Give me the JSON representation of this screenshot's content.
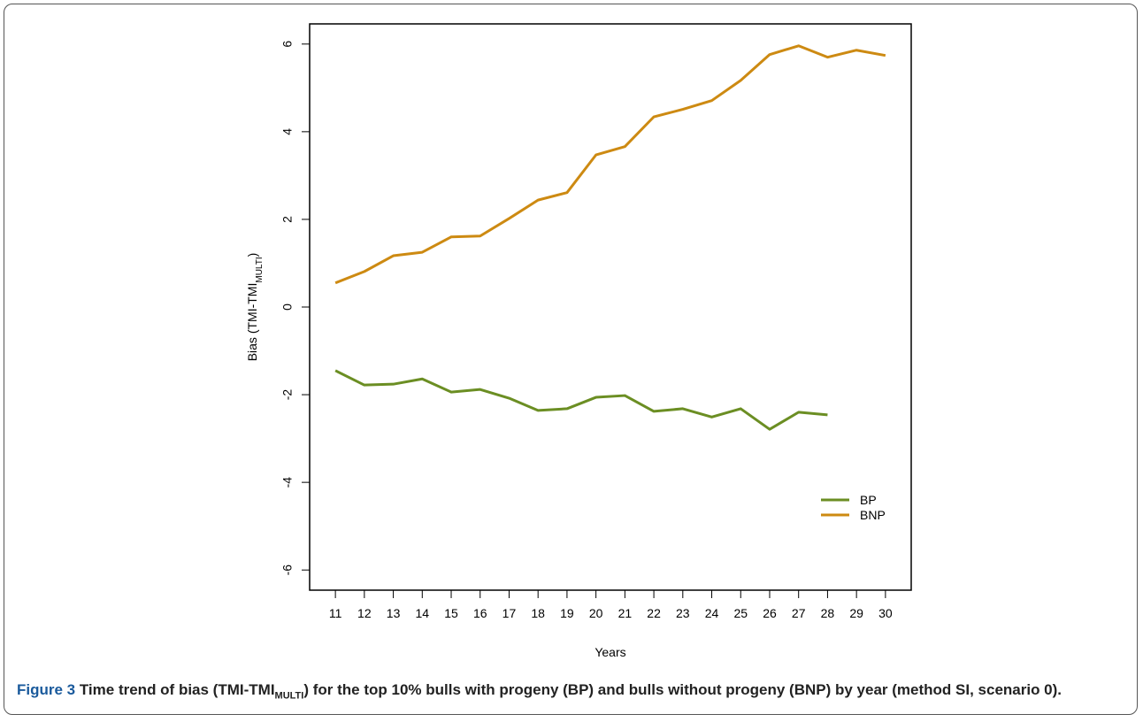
{
  "chart_data": {
    "type": "line",
    "x": [
      11,
      12,
      13,
      14,
      15,
      16,
      17,
      18,
      19,
      20,
      21,
      22,
      23,
      24,
      25,
      26,
      27,
      28,
      29,
      30
    ],
    "xlim": [
      10.11,
      30.89
    ],
    "xticks": [
      11,
      12,
      13,
      14,
      15,
      16,
      17,
      18,
      19,
      20,
      21,
      22,
      23,
      24,
      25,
      26,
      27,
      28,
      29,
      30
    ],
    "ylim": [
      -6.46,
      6.46
    ],
    "yticks": [
      -6,
      -4,
      -2,
      0,
      2,
      4,
      6
    ],
    "x_label": "Years",
    "y_label": {
      "main": "Bias (TMI-TMI",
      "sub": "MULTI",
      "end": ")"
    },
    "legend_position": "lower right",
    "series": [
      {
        "name": "BP",
        "color": "#6b8e23",
        "values": [
          -1.45,
          -1.78,
          -1.76,
          -1.64,
          -1.94,
          -1.88,
          -2.08,
          -2.36,
          -2.32,
          -2.06,
          -2.02,
          -2.38,
          -2.32,
          -2.51,
          -2.32,
          -2.79,
          -2.4,
          -2.46,
          null,
          null
        ]
      },
      {
        "name": "BNP",
        "color": "#cd8a12",
        "values": [
          0.55,
          0.81,
          1.17,
          1.25,
          1.6,
          1.62,
          2.02,
          2.44,
          2.61,
          3.47,
          3.66,
          4.34,
          4.51,
          4.71,
          5.17,
          5.76,
          5.96,
          5.7,
          5.86,
          5.74
        ]
      }
    ]
  },
  "caption": {
    "label": "Figure 3",
    "text_1": "Time trend of bias (TMI-TMI",
    "sub": "MULTI",
    "text_2": ") for the top 10% bulls with progeny (BP) and bulls without progeny (BNP) by year (method SI, scenario 0)."
  }
}
